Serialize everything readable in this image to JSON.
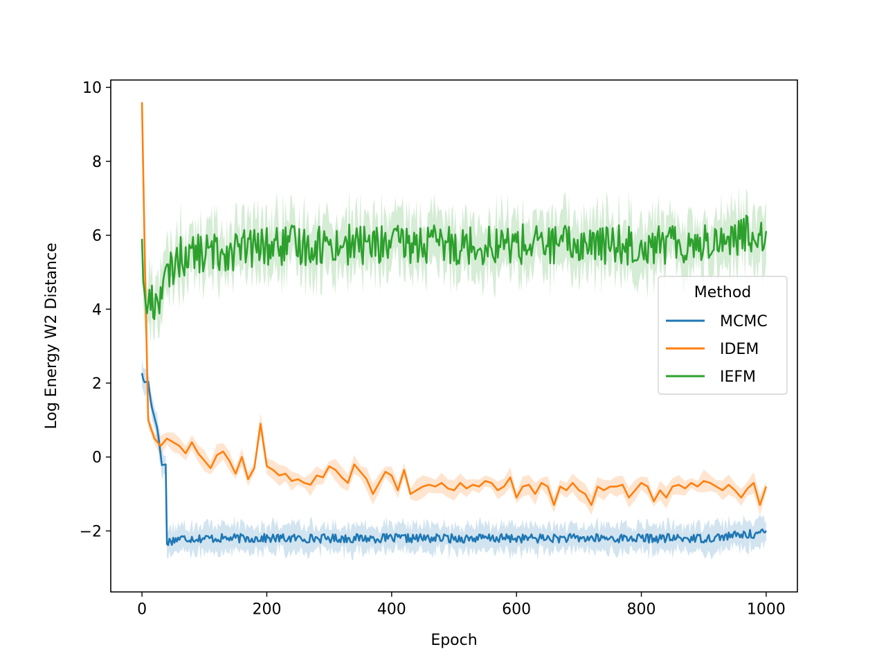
{
  "chart_data": {
    "type": "line",
    "title": "",
    "xlabel": "Epoch",
    "ylabel": "Log Energy W2 Distance",
    "xlim": [
      -50,
      1050
    ],
    "ylim": [
      -3.65,
      10.2
    ],
    "xticks": [
      0,
      200,
      400,
      600,
      800,
      1000
    ],
    "xtick_labels": [
      "0",
      "200",
      "400",
      "600",
      "800",
      "1000"
    ],
    "yticks": [
      -2,
      0,
      2,
      4,
      6,
      8,
      10
    ],
    "ytick_labels": [
      "−2",
      "0",
      "2",
      "4",
      "6",
      "8",
      "10"
    ],
    "grid": false,
    "legend": {
      "title": "Method",
      "placement": "center-right",
      "entries": [
        "MCMC",
        "IDEM",
        "IEFM"
      ]
    },
    "series": [
      {
        "name": "MCMC",
        "color": "#1f77b4",
        "band": "mean ± spread (shaded)",
        "x": [
          0,
          3,
          10,
          15,
          25,
          32,
          38,
          40,
          60,
          100,
          200,
          300,
          400,
          500,
          600,
          700,
          800,
          900,
          1000
        ],
        "values": [
          2.27,
          2.02,
          2.04,
          1.4,
          0.75,
          -0.22,
          -0.2,
          -2.3,
          -2.2,
          -2.2,
          -2.2,
          -2.2,
          -2.2,
          -2.2,
          -2.2,
          -2.2,
          -2.2,
          -2.2,
          -2.05
        ],
        "band_halfwidth": 0.35
      },
      {
        "name": "IDEM",
        "color": "#ff7f0e",
        "band": "mean ± spread (shaded)",
        "x": [
          0,
          5,
          10,
          15,
          20,
          30,
          40,
          50,
          60,
          70,
          80,
          90,
          100,
          110,
          120,
          130,
          140,
          150,
          160,
          170,
          180,
          190,
          200,
          210,
          220,
          230,
          240,
          250,
          260,
          270,
          280,
          290,
          300,
          310,
          320,
          330,
          340,
          350,
          360,
          370,
          380,
          390,
          400,
          410,
          420,
          430,
          440,
          450,
          460,
          470,
          480,
          490,
          500,
          510,
          520,
          530,
          540,
          550,
          560,
          570,
          580,
          590,
          600,
          610,
          620,
          630,
          640,
          650,
          660,
          670,
          680,
          690,
          700,
          710,
          720,
          730,
          740,
          750,
          760,
          770,
          780,
          790,
          800,
          810,
          820,
          830,
          840,
          850,
          860,
          870,
          880,
          890,
          900,
          910,
          920,
          930,
          940,
          950,
          960,
          970,
          980,
          990,
          1000
        ],
        "values": [
          9.6,
          5.0,
          1.0,
          0.75,
          0.5,
          0.3,
          0.5,
          0.4,
          0.3,
          0.1,
          0.4,
          0.1,
          -0.1,
          -0.3,
          0.05,
          0.15,
          -0.1,
          -0.45,
          0.0,
          -0.6,
          -0.3,
          0.9,
          -0.25,
          -0.35,
          -0.5,
          -0.45,
          -0.65,
          -0.6,
          -0.7,
          -0.75,
          -0.5,
          -0.55,
          -0.25,
          -0.35,
          -0.55,
          -0.7,
          -0.2,
          -0.4,
          -0.6,
          -1.0,
          -0.7,
          -0.4,
          -0.5,
          -0.9,
          -0.35,
          -1.0,
          -0.9,
          -0.8,
          -0.75,
          -0.8,
          -0.7,
          -0.85,
          -0.9,
          -0.7,
          -0.85,
          -0.75,
          -0.8,
          -0.65,
          -0.7,
          -0.9,
          -0.8,
          -0.55,
          -1.1,
          -0.8,
          -0.75,
          -1.0,
          -0.7,
          -0.8,
          -1.3,
          -0.8,
          -0.9,
          -0.7,
          -0.9,
          -1.0,
          -1.3,
          -0.8,
          -0.9,
          -0.8,
          -0.8,
          -0.75,
          -1.1,
          -0.9,
          -0.7,
          -0.8,
          -1.2,
          -0.9,
          -1.1,
          -0.8,
          -0.75,
          -0.85,
          -0.7,
          -0.8,
          -0.65,
          -0.7,
          -0.8,
          -0.9,
          -0.75,
          -0.9,
          -1.1,
          -0.85,
          -0.7,
          -1.3,
          -0.8
        ],
        "band_halfwidth": 0.22
      },
      {
        "name": "IEFM",
        "color": "#2ca02c",
        "band": "mean ± spread (shaded)",
        "x": [
          0,
          5,
          10,
          20,
          30,
          40,
          50,
          60,
          80,
          100,
          150,
          200,
          300,
          400,
          500,
          600,
          700,
          800,
          900,
          1000
        ],
        "values": [
          6.1,
          3.7,
          4.3,
          4.1,
          4.5,
          4.8,
          5.2,
          5.4,
          5.5,
          5.5,
          5.6,
          5.7,
          5.75,
          5.75,
          5.75,
          5.75,
          5.75,
          5.75,
          5.8,
          6.1
        ],
        "band_halfwidth": 0.7
      }
    ]
  }
}
